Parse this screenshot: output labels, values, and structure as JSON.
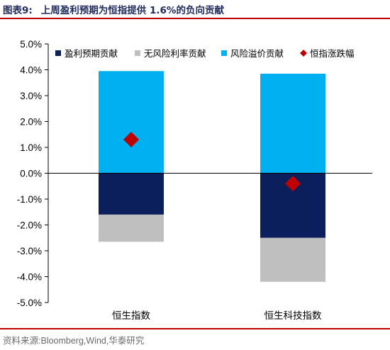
{
  "title": {
    "figure_label": "图表9:",
    "text": "上周盈利预期为恒指提供 1.6%的负向贡献"
  },
  "source": "资料来源:Bloomberg,Wind,华泰研究",
  "colors": {
    "title_text": "#1f2a5c",
    "rule": "#c00000",
    "earnings": "#0b1f5c",
    "riskfree": "#bfbfbf",
    "premium": "#00b0f0",
    "index": "#c00000"
  },
  "chart_data": {
    "type": "bar",
    "stacked": true,
    "categories": [
      "恒生指数",
      "恒生科技指数"
    ],
    "series": [
      {
        "name": "盈利预期贡献",
        "values": [
          -1.6,
          -2.5
        ]
      },
      {
        "name": "无风险利率贡献",
        "values": [
          -1.05,
          -1.7
        ]
      },
      {
        "name": "风险溢价贡献",
        "values": [
          3.95,
          3.85
        ]
      }
    ],
    "markers": {
      "name": "恒指涨跌幅",
      "shape": "diamond",
      "values": [
        1.3,
        -0.4
      ]
    },
    "ylim": [
      -5.0,
      5.0
    ],
    "yticks": [
      5.0,
      4.0,
      3.0,
      2.0,
      1.0,
      0.0,
      -1.0,
      -2.0,
      -3.0,
      -4.0,
      -5.0
    ],
    "ytick_labels": [
      "5.0%",
      "4.0%",
      "3.0%",
      "2.0%",
      "1.0%",
      "0.0%",
      "-1.0%",
      "-2.0%",
      "-3.0%",
      "-4.0%",
      "-5.0%"
    ],
    "legend_position": "top",
    "grid": false,
    "xlabel": "",
    "ylabel": ""
  }
}
